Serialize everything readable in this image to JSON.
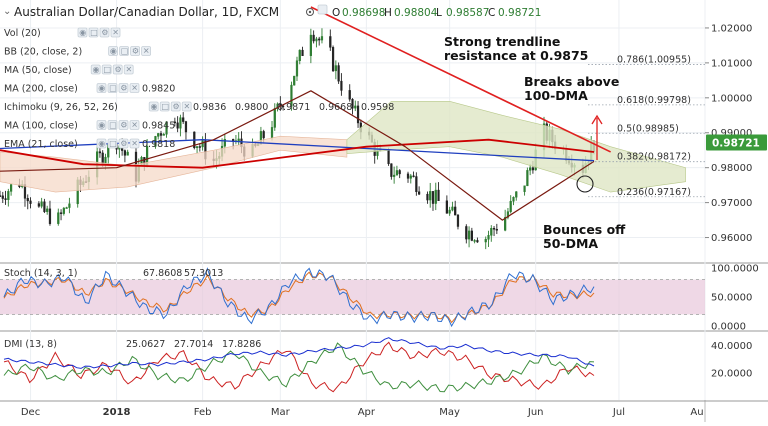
{
  "header": {
    "symbol_title": "Australian Dollar/Canadian Dollar, 1D, FXCM",
    "ohlc": [
      {
        "label": "O",
        "value": "0.98698"
      },
      {
        "label": "H",
        "value": "0.98804"
      },
      {
        "label": "L",
        "value": "0.98587"
      },
      {
        "label": "C",
        "value": "0.98721"
      }
    ]
  },
  "indicators": [
    {
      "label": "Vol (20)",
      "faded": true,
      "values": []
    },
    {
      "label": "BB (20, close, 2)",
      "faded": true,
      "values": []
    },
    {
      "label": "MA (50, close)",
      "faded": true,
      "values": []
    },
    {
      "label": "MA (200, close)",
      "faded": false,
      "values": [
        {
          "text": "0.9820",
          "color": "#1f3fbf"
        }
      ]
    },
    {
      "label": "Ichimoku (9, 26, 52, 26)",
      "faded": false,
      "values": [
        {
          "text": "0.9836",
          "color": "#2f8fd0"
        },
        {
          "text": "0.9800",
          "color": "#b03030"
        },
        {
          "text": "0.9871",
          "color": "#8fbf3f"
        },
        {
          "text": "0.9668",
          "color": "#3f8f3f"
        },
        {
          "text": "0.9598",
          "color": "#c04040"
        }
      ]
    },
    {
      "label": "MA (100, close)",
      "faded": false,
      "values": [
        {
          "text": "0.9845",
          "color": "#cc0000"
        }
      ]
    },
    {
      "label": "EMA (21, close)",
      "faded": false,
      "values": [
        {
          "text": "0.9818",
          "color": "#7a1a10"
        }
      ]
    }
  ],
  "annotations": {
    "resistance_line1": "Strong trendline",
    "resistance_line2": "resistance at 0.9875",
    "breaks_line1": "Breaks above",
    "breaks_line2": "100-DMA",
    "bounces_line1": "Bounces off",
    "bounces_line2": "50-DMA"
  },
  "fib_levels": [
    {
      "ratio": "0.786",
      "value": "1.00955",
      "text": "0.786(1.00955)",
      "color": "#333333"
    },
    {
      "ratio": "0.618",
      "value": "0.99798",
      "text": "0.618(0.99798)",
      "color": "#333333"
    },
    {
      "ratio": "0.5",
      "value": "0.98985",
      "text": "0.5(0.98985)",
      "color": "#5c9e3c"
    },
    {
      "ratio": "0.382",
      "value": "0.98172",
      "text": "0.382(0.98172)",
      "color": "#333333"
    },
    {
      "ratio": "0.236",
      "value": "0.97167",
      "text": "0.236(0.97167)",
      "color": "#333333"
    }
  ],
  "price_axis": {
    "ticks": [
      "1.02000",
      "1.01000",
      "1.00000",
      "0.99000",
      "0.98000",
      "0.97000",
      "0.96000"
    ],
    "current_price": "0.98721",
    "current_color": "#3a9a3a"
  },
  "time_axis": [
    "Dec",
    "2018",
    "Feb",
    "Mar",
    "Apr",
    "May",
    "Jun",
    "Jul",
    "Au"
  ],
  "stoch": {
    "label": "Stoch (14, 3, 1)",
    "k_value": "67.8608",
    "d_value": "57.3013",
    "k_color": "#2f6fd0",
    "d_color": "#e07020",
    "ticks": [
      "100.0000",
      "50.0000",
      "0.0000"
    ],
    "band_color": "#e6c3d8"
  },
  "dmi": {
    "label": "DMI (13, 8)",
    "adx_value": "25.0627",
    "plus_value": "27.7014",
    "minus_value": "17.8286",
    "adx_color": "#1a2fd0",
    "plus_color": "#3f8f3f",
    "minus_color": "#cc2222",
    "ticks": [
      "40.0000",
      "20.0000"
    ]
  },
  "chart_data": [
    {
      "type": "candlestick",
      "title": "Australian Dollar/Canadian Dollar, 1D, FXCM",
      "x_range": [
        "2017-11-20",
        "2018-08-01"
      ],
      "ylim": [
        0.953,
        1.028
      ],
      "approx_close_path": [
        {
          "date": "2017-11-20",
          "close": 0.972
        },
        {
          "date": "2017-11-27",
          "close": 0.976
        },
        {
          "date": "2017-12-04",
          "close": 0.968
        },
        {
          "date": "2017-12-11",
          "close": 0.965
        },
        {
          "date": "2017-12-18",
          "close": 0.974
        },
        {
          "date": "2017-12-25",
          "close": 0.982
        },
        {
          "date": "2018-01-01",
          "close": 0.988
        },
        {
          "date": "2018-01-08",
          "close": 0.978
        },
        {
          "date": "2018-01-15",
          "close": 0.989
        },
        {
          "date": "2018-01-22",
          "close": 0.995
        },
        {
          "date": "2018-01-29",
          "close": 0.988
        },
        {
          "date": "2018-02-05",
          "close": 0.982
        },
        {
          "date": "2018-02-12",
          "close": 0.988
        },
        {
          "date": "2018-02-19",
          "close": 0.984
        },
        {
          "date": "2018-02-26",
          "close": 0.993
        },
        {
          "date": "2018-03-05",
          "close": 1.005
        },
        {
          "date": "2018-03-12",
          "close": 1.02
        },
        {
          "date": "2018-03-19",
          "close": 1.012
        },
        {
          "date": "2018-03-26",
          "close": 0.998
        },
        {
          "date": "2018-04-02",
          "close": 0.988
        },
        {
          "date": "2018-04-09",
          "close": 0.979
        },
        {
          "date": "2018-04-16",
          "close": 0.978
        },
        {
          "date": "2018-04-23",
          "close": 0.973
        },
        {
          "date": "2018-04-30",
          "close": 0.968
        },
        {
          "date": "2018-05-07",
          "close": 0.962
        },
        {
          "date": "2018-05-14",
          "close": 0.96
        },
        {
          "date": "2018-05-21",
          "close": 0.966
        },
        {
          "date": "2018-05-28",
          "close": 0.976
        },
        {
          "date": "2018-06-04",
          "close": 0.99
        },
        {
          "date": "2018-06-11",
          "close": 0.985
        },
        {
          "date": "2018-06-18",
          "close": 0.98
        },
        {
          "date": "2018-06-22",
          "close": 0.9872
        }
      ],
      "overlays": {
        "trendline": {
          "from": {
            "date": "2018-03-12",
            "value": 1.026
          },
          "to": {
            "date": "2018-06-28",
            "value": 0.9845
          }
        },
        "ma_200": [
          {
            "date": "2017-11-20",
            "value": 0.9855
          },
          {
            "date": "2018-02-01",
            "value": 0.988
          },
          {
            "date": "2018-04-01",
            "value": 0.9855
          },
          {
            "date": "2018-06-22",
            "value": 0.982
          }
        ],
        "ma_100": [
          {
            "date": "2017-11-20",
            "value": 0.985
          },
          {
            "date": "2017-12-20",
            "value": 0.981
          },
          {
            "date": "2018-02-01",
            "value": 0.98
          },
          {
            "date": "2018-04-01",
            "value": 0.986
          },
          {
            "date": "2018-05-15",
            "value": 0.988
          },
          {
            "date": "2018-06-22",
            "value": 0.9845
          }
        ],
        "ema_21": [
          {
            "date": "2017-11-20",
            "value": 0.979
          },
          {
            "date": "2018-01-01",
            "value": 0.98
          },
          {
            "date": "2018-02-05",
            "value": 0.988
          },
          {
            "date": "2018-03-12",
            "value": 1.002
          },
          {
            "date": "2018-04-15",
            "value": 0.986
          },
          {
            "date": "2018-05-20",
            "value": 0.965
          },
          {
            "date": "2018-06-22",
            "value": 0.9818
          }
        ],
        "ichimoku_cloud": {
          "top": 0.999,
          "bottom": 0.973,
          "span": [
            "2018-03-25",
            "2018-07-25"
          ]
        }
      },
      "fibonacci": [
        {
          "ratio": 0.786,
          "value": 1.00955
        },
        {
          "ratio": 0.618,
          "value": 0.99798
        },
        {
          "ratio": 0.5,
          "value": 0.98985
        },
        {
          "ratio": 0.382,
          "value": 0.98172
        },
        {
          "ratio": 0.236,
          "value": 0.97167
        }
      ]
    },
    {
      "type": "line",
      "title": "Stoch (14, 3, 1)",
      "ylim": [
        0,
        100
      ],
      "series": [
        {
          "name": "%K",
          "values": [
            50,
            80,
            72,
            85,
            40,
            88,
            60,
            30,
            20,
            70,
            90,
            40,
            10,
            30,
            75,
            92,
            86,
            40,
            10,
            20,
            15,
            18,
            8,
            25,
            40,
            90,
            80,
            45,
            55,
            68
          ]
        },
        {
          "name": "%D",
          "values": [
            48,
            70,
            75,
            80,
            55,
            78,
            62,
            40,
            28,
            60,
            82,
            48,
            20,
            28,
            65,
            88,
            85,
            50,
            18,
            20,
            18,
            20,
            12,
            22,
            38,
            80,
            82,
            55,
            52,
            57
          ]
        }
      ]
    },
    {
      "type": "line",
      "title": "DMI (13, 8)",
      "ylim": [
        0,
        50
      ],
      "series": [
        {
          "name": "ADX",
          "values": [
            30,
            28,
            26,
            24,
            25,
            27,
            26,
            28,
            30,
            34,
            35,
            33,
            36,
            38,
            40,
            45,
            42,
            38,
            40,
            36,
            34,
            33,
            32,
            25
          ]
        },
        {
          "name": "+DI",
          "values": [
            18,
            25,
            15,
            22,
            20,
            30,
            18,
            14,
            26,
            35,
            20,
            12,
            28,
            40,
            22,
            10,
            12,
            8,
            10,
            14,
            20,
            32,
            22,
            28
          ]
        },
        {
          "name": "-DI",
          "values": [
            28,
            15,
            32,
            18,
            26,
            12,
            30,
            34,
            15,
            10,
            25,
            38,
            12,
            8,
            28,
            40,
            32,
            36,
            30,
            18,
            14,
            10,
            24,
            18
          ]
        }
      ]
    }
  ]
}
